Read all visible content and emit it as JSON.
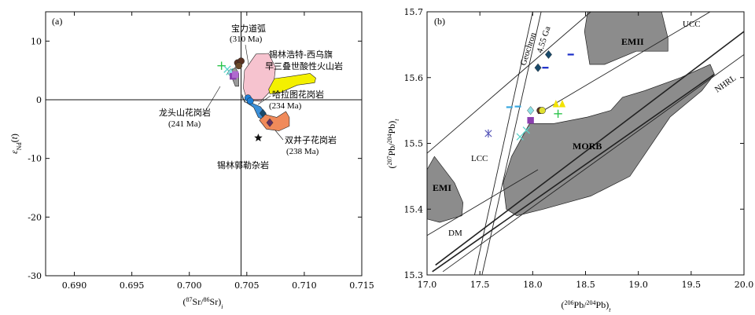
{
  "chart_data": [
    {
      "panel": "(a)",
      "type": "scatter",
      "xlabel": "(87Sr/86Sr)i",
      "ylabel": "εNd(t)",
      "xlim": [
        0.6875,
        0.715
      ],
      "ylim": [
        -30,
        15
      ],
      "x_ticks": [
        0.69,
        0.695,
        0.7,
        0.705,
        0.71,
        0.715
      ],
      "x_tick_labels": [
        "0.690",
        "0.695",
        "0.700",
        "0.705",
        "0.710",
        "0.715"
      ],
      "y_ticks": [
        -30,
        -20,
        -10,
        0,
        10
      ],
      "y_tick_labels": [
        "-30",
        "-20",
        "-10",
        "0",
        "10"
      ],
      "reference_lines": {
        "x": 0.7045,
        "y": 0
      },
      "fields": [
        {
          "name": "宝力道弧",
          "color": "#f6c3cf",
          "outline": [
            [
              0.7047,
              2.0
            ],
            [
              0.7048,
              5.0
            ],
            [
              0.7058,
              7.8
            ],
            [
              0.7069,
              7.9
            ],
            [
              0.7075,
              5.5
            ],
            [
              0.7073,
              2.0
            ],
            [
              0.7062,
              -0.3
            ],
            [
              0.705,
              0.0
            ]
          ]
        },
        {
          "name": "锡林浩特-西乌旗早三叠世酸性火山岩",
          "color": "#f4f000",
          "outline": [
            [
              0.7069,
              1.8
            ],
            [
              0.7074,
              3.6
            ],
            [
              0.7089,
              4.0
            ],
            [
              0.7105,
              4.5
            ],
            [
              0.711,
              3.7
            ],
            [
              0.7109,
              2.9
            ],
            [
              0.7094,
              2.5
            ],
            [
              0.708,
              1.3
            ],
            [
              0.707,
              1.0
            ]
          ]
        },
        {
          "name": "哈拉图花岗岩",
          "color": "#3b8fd8",
          "outline": [
            [
              0.7046,
              0.9
            ],
            [
              0.7048,
              -0.4
            ],
            [
              0.7055,
              -0.6
            ],
            [
              0.7062,
              -1.2
            ],
            [
              0.7068,
              -2.8
            ],
            [
              0.7066,
              -3.5
            ],
            [
              0.706,
              -3.0
            ],
            [
              0.7056,
              -1.3
            ],
            [
              0.7049,
              -0.4
            ],
            [
              0.7046,
              0.3
            ]
          ]
        },
        {
          "name": "双井子花岗岩",
          "color": "#f08a5a",
          "outline": [
            [
              0.7061,
              -3.5
            ],
            [
              0.7066,
              -2.5
            ],
            [
              0.7076,
              -3.0
            ],
            [
              0.7084,
              -2.0
            ],
            [
              0.7087,
              -3.0
            ],
            [
              0.7087,
              -4.5
            ],
            [
              0.7078,
              -5.3
            ],
            [
              0.7067,
              -5.0
            ]
          ]
        },
        {
          "name": "龙头山花岗岩",
          "color": "#9a9a9a",
          "outline": [
            [
              0.7035,
              4.8
            ],
            [
              0.704,
              2.3
            ],
            [
              0.7043,
              2.3
            ],
            [
              0.7043,
              4.5
            ],
            [
              0.704,
              5.5
            ]
          ]
        }
      ],
      "points": [
        {
          "x": 0.7028,
          "y": 5.8,
          "marker": "plus",
          "color": "#2bc44a"
        },
        {
          "x": 0.7033,
          "y": 5.2,
          "marker": "x",
          "color": "#5ad3c9"
        },
        {
          "x": 0.7035,
          "y": 4.8,
          "marker": "x",
          "color": "#5ad3c9"
        },
        {
          "x": 0.7036,
          "y": 4.6,
          "marker": "diamond",
          "color": "#8fe3e8"
        },
        {
          "x": 0.7038,
          "y": 4.0,
          "marker": "square",
          "color": "#8b3fb0"
        },
        {
          "x": 0.704,
          "y": 4.3,
          "marker": "square",
          "color": "#b06ad0"
        },
        {
          "x": 0.7042,
          "y": 6.3,
          "marker": "circle",
          "color": "#5a3222"
        },
        {
          "x": 0.7045,
          "y": 6.6,
          "marker": "circle",
          "color": "#5a3222"
        },
        {
          "x": 0.7043,
          "y": 5.8,
          "marker": "circle",
          "color": "#6b4a2a"
        },
        {
          "x": 0.7051,
          "y": 0.3,
          "marker": "circle",
          "color": "#1e7fd6"
        },
        {
          "x": 0.7053,
          "y": -0.2,
          "marker": "circle",
          "color": "#1e7fd6"
        },
        {
          "x": 0.7064,
          "y": -2.3,
          "marker": "diamond",
          "color": "#1a4a6a"
        },
        {
          "x": 0.707,
          "y": -3.9,
          "marker": "diamond",
          "color": "#603060"
        },
        {
          "x": 0.706,
          "y": -6.5,
          "marker": "star",
          "color": "#111111"
        }
      ],
      "labels": {
        "baolidao": "宝力道弧",
        "baolidao_age": "(310 Ma)",
        "xilin_1": "锡林浩特-西乌旗",
        "xilin_2": "早三叠世酸性火山岩",
        "halatu": "哈拉图花岗岩",
        "halatu_age": "(234 Ma)",
        "shuangjing": "双井子花岗岩",
        "shuangjing_age": "(238 Ma)",
        "longtou": "龙头山花岗岩",
        "longtou_age": "(241 Ma)",
        "xilinguole": "锡林郭勒杂岩"
      }
    },
    {
      "panel": "(b)",
      "type": "scatter",
      "xlabel": "(206Pb/204Pb)t",
      "ylabel": "(207Pb/204Pb)t",
      "xlim": [
        17.0,
        20.0
      ],
      "ylim": [
        15.3,
        15.7
      ],
      "x_ticks": [
        17.0,
        17.5,
        18.0,
        18.5,
        19.0,
        19.5,
        20.0
      ],
      "x_tick_labels": [
        "17.0",
        "17.5",
        "18.0",
        "18.5",
        "19.0",
        "19.5",
        "20.0"
      ],
      "y_ticks": [
        15.3,
        15.4,
        15.5,
        15.6,
        15.7
      ],
      "y_tick_labels": [
        "15.3",
        "15.4",
        "15.5",
        "15.6",
        "15.7"
      ],
      "fields": [
        {
          "name": "EMII",
          "color": "#8c8c8c",
          "outline": [
            [
              18.52,
              15.7
            ],
            [
              18.49,
              15.67
            ],
            [
              18.54,
              15.62
            ],
            [
              18.68,
              15.62
            ],
            [
              18.98,
              15.64
            ],
            [
              19.28,
              15.64
            ],
            [
              19.28,
              15.66
            ],
            [
              19.22,
              15.7
            ]
          ]
        },
        {
          "name": "MORB",
          "color": "#8c8c8c",
          "outline": [
            [
              17.75,
              15.4
            ],
            [
              17.72,
              15.44
            ],
            [
              17.8,
              15.48
            ],
            [
              17.97,
              15.53
            ],
            [
              18.2,
              15.53
            ],
            [
              18.52,
              15.54
            ],
            [
              18.74,
              15.55
            ],
            [
              18.85,
              15.57
            ],
            [
              19.06,
              15.58
            ],
            [
              19.4,
              15.6
            ],
            [
              19.68,
              15.62
            ],
            [
              19.72,
              15.605
            ],
            [
              19.6,
              15.58
            ],
            [
              19.3,
              15.54
            ],
            [
              18.92,
              15.45
            ],
            [
              18.55,
              15.42
            ],
            [
              18.1,
              15.4
            ],
            [
              17.85,
              15.39
            ]
          ]
        },
        {
          "name": "EMI",
          "color": "#8c8c8c",
          "outline": [
            [
              17.0,
              15.46
            ],
            [
              17.07,
              15.48
            ],
            [
              17.26,
              15.44
            ],
            [
              17.34,
              15.41
            ],
            [
              17.33,
              15.39
            ],
            [
              17.12,
              15.38
            ],
            [
              17.0,
              15.385
            ]
          ]
        }
      ],
      "lines": [
        {
          "name": "Geochron",
          "label2": "4.55 Ga",
          "points": [
            [
              17.45,
              15.3
            ],
            [
              18.0,
              15.7
            ]
          ]
        },
        {
          "name": "Geochron (parallel)",
          "points": [
            [
              17.52,
              15.3
            ],
            [
              18.08,
              15.7
            ]
          ]
        },
        {
          "name": "LCC",
          "points": [
            [
              17.0,
              15.485
            ],
            [
              18.55,
              15.7
            ]
          ]
        },
        {
          "name": "UCC",
          "points": [
            [
              18.05,
              15.545
            ],
            [
              19.68,
              15.7
            ]
          ]
        },
        {
          "name": "DM",
          "points": [
            [
              17.0,
              15.36
            ],
            [
              18.05,
              15.46
            ]
          ]
        },
        {
          "name": "NHRL",
          "points": [
            [
              17.08,
              15.315
            ],
            [
              20.0,
              15.67
            ]
          ]
        },
        {
          "name": "NHRL (parallel)",
          "points": [
            [
              17.05,
              15.305
            ],
            [
              19.72,
              15.605
            ]
          ]
        },
        {
          "name": "upper tangent",
          "points": [
            [
              17.15,
              15.305
            ],
            [
              20.0,
              15.635
            ]
          ]
        }
      ],
      "points": [
        {
          "x": 17.58,
          "y": 15.515,
          "marker": "asterisk",
          "color": "#5656b8"
        },
        {
          "x": 17.88,
          "y": 15.51,
          "marker": "x",
          "color": "#5ad3c9"
        },
        {
          "x": 17.94,
          "y": 15.52,
          "marker": "x",
          "color": "#5ad3c9"
        },
        {
          "x": 17.98,
          "y": 15.535,
          "marker": "square",
          "color": "#8b3fb0"
        },
        {
          "x": 17.98,
          "y": 15.55,
          "marker": "diamond",
          "color": "#8fe3e8"
        },
        {
          "x": 18.07,
          "y": 15.55,
          "marker": "circle",
          "color": "#5a3222"
        },
        {
          "x": 18.09,
          "y": 15.55,
          "marker": "circle",
          "color": "#e0e030"
        },
        {
          "x": 18.22,
          "y": 15.56,
          "marker": "triangle",
          "color": "#f2e200"
        },
        {
          "x": 18.28,
          "y": 15.56,
          "marker": "triangle",
          "color": "#f2e200"
        },
        {
          "x": 18.24,
          "y": 15.545,
          "marker": "plus",
          "color": "#2bc44a"
        },
        {
          "x": 17.86,
          "y": 15.556,
          "marker": "dash",
          "color": "#3aa8e0"
        },
        {
          "x": 17.78,
          "y": 15.555,
          "marker": "dash",
          "color": "#3aa8e0"
        },
        {
          "x": 18.05,
          "y": 15.615,
          "marker": "diamond",
          "color": "#1a4a6a"
        },
        {
          "x": 18.15,
          "y": 15.635,
          "marker": "diamond",
          "color": "#1a4a6a"
        },
        {
          "x": 18.12,
          "y": 15.615,
          "marker": "dash",
          "color": "#1a2cc8"
        },
        {
          "x": 18.36,
          "y": 15.635,
          "marker": "dash",
          "color": "#1a2cc8"
        }
      ],
      "field_labels": {
        "emii": "EMII",
        "morb": "MORB",
        "emi": "EMI",
        "ucc": "UCC",
        "lcc": "LCC",
        "dm": "DM",
        "nhrl": "NHRL",
        "geochron": "Geochron",
        "age": "4.55 Ga"
      }
    }
  ],
  "colors": {
    "frame": "#111111",
    "field_gray": "#8c8c8c"
  }
}
